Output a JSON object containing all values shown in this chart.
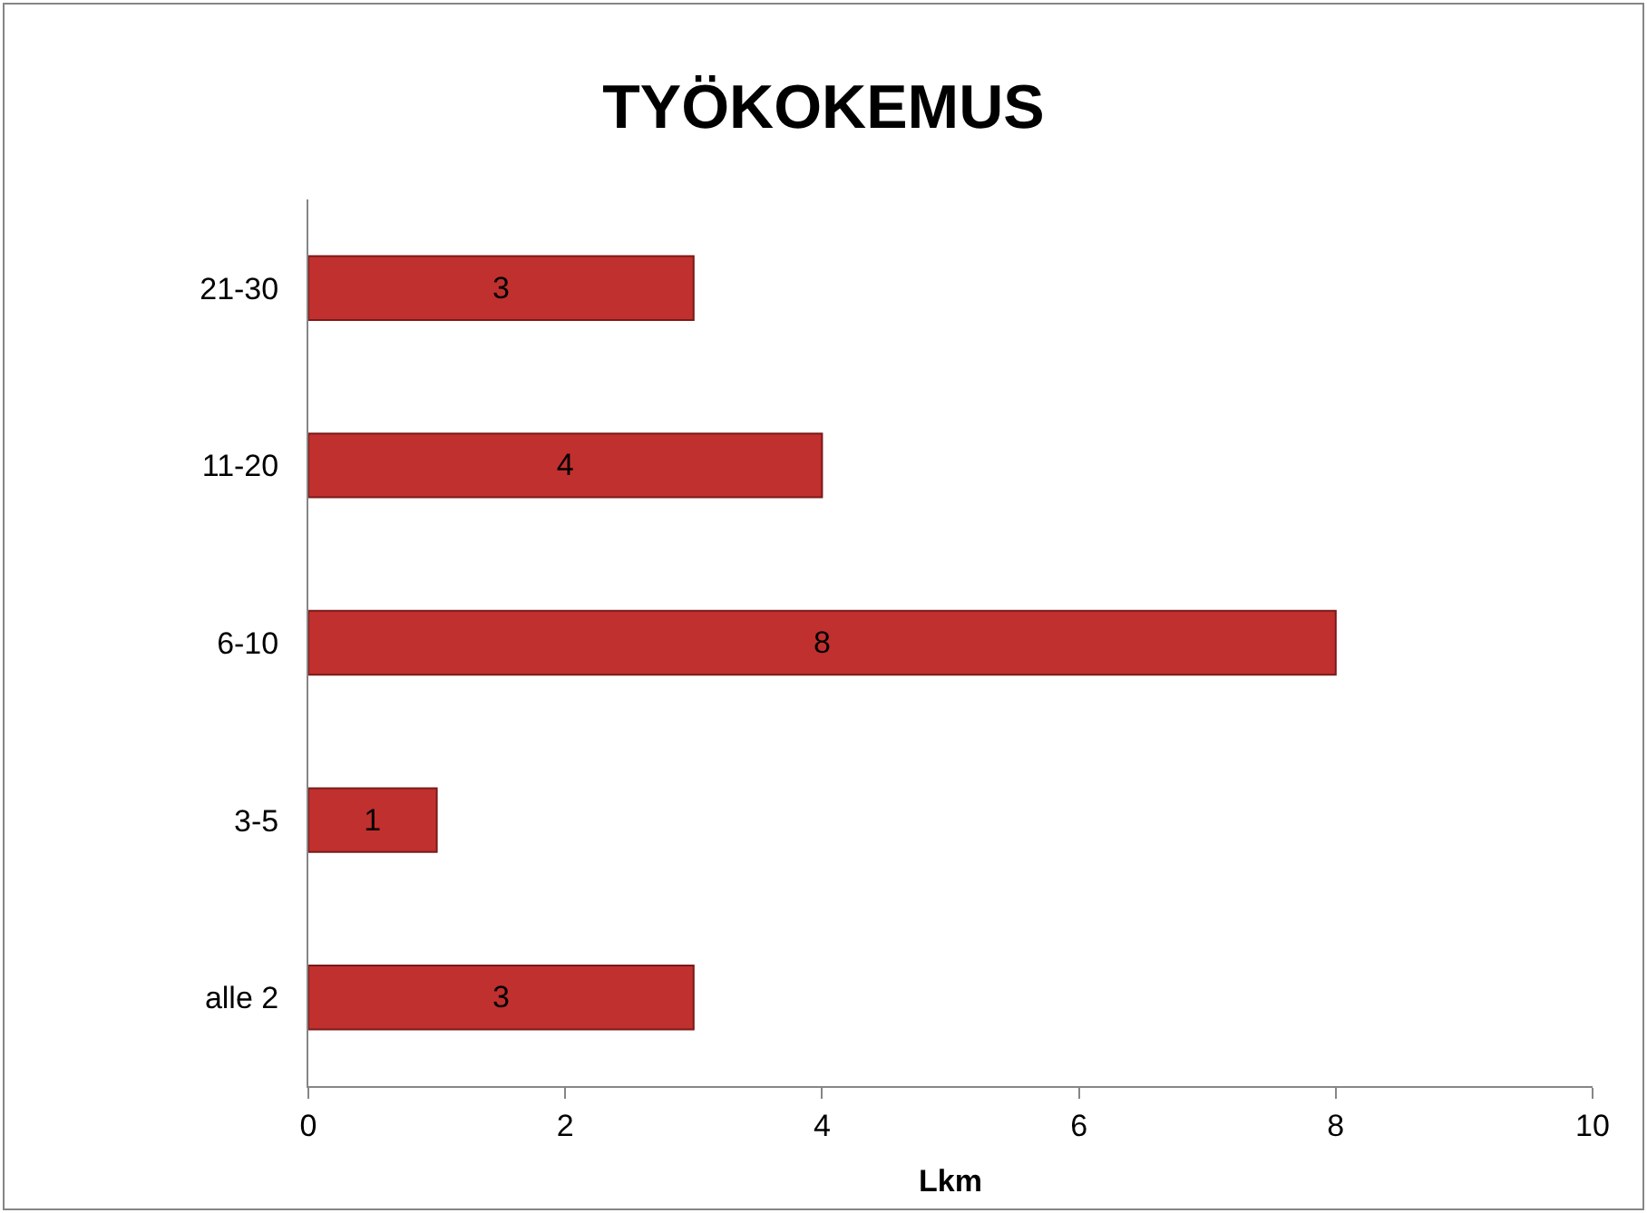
{
  "chart_data": {
    "type": "bar",
    "orientation": "horizontal",
    "title": "TYÖKOKEMUS",
    "xlabel": "Lkm",
    "categories": [
      "21-30",
      "11-20",
      "6-10",
      "3-5",
      "alle 2"
    ],
    "values": [
      3,
      4,
      8,
      1,
      3
    ],
    "color": "#c0302e",
    "xlim": [
      0,
      10
    ],
    "xticks": [
      0,
      2,
      4,
      6,
      8,
      10
    ],
    "data_labels": true,
    "legend": false
  }
}
